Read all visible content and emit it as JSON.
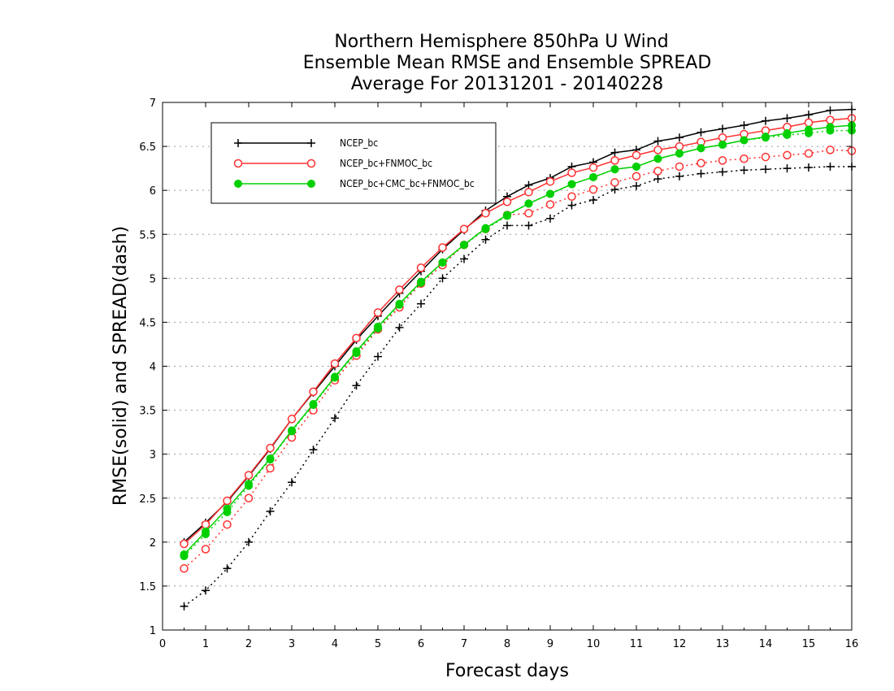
{
  "chart_data": {
    "type": "line",
    "title_lines": [
      "Northern Hemisphere 850hPa U Wind",
      "Ensemble Mean RMSE and Ensemble SPREAD",
      "Average For 20131201 - 20140228"
    ],
    "xlabel": "Forecast days",
    "ylabel": "RMSE(solid) and SPREAD(dash)",
    "xlim": [
      0,
      16
    ],
    "ylim": [
      1,
      7
    ],
    "x_ticks": [
      "0",
      "1",
      "2",
      "3",
      "4",
      "5",
      "6",
      "7",
      "8",
      "9",
      "10",
      "11",
      "12",
      "13",
      "14",
      "15",
      "16"
    ],
    "y_ticks": [
      "1",
      "1.5",
      "2",
      "2.5",
      "3",
      "3.5",
      "4",
      "4.5",
      "5",
      "5.5",
      "6",
      "6.5",
      "7"
    ],
    "grid": "horizontal dotted",
    "legend_placement": "top-left",
    "x": [
      0.5,
      1,
      1.5,
      2,
      2.5,
      3,
      3.5,
      4,
      4.5,
      5,
      5.5,
      6,
      6.5,
      7,
      7.5,
      8,
      8.5,
      9,
      9.5,
      10,
      10.5,
      11,
      11.5,
      12,
      12.5,
      13,
      13.5,
      14,
      14.5,
      15,
      15.5,
      16
    ],
    "series": [
      {
        "name": "NCEP_bc",
        "color": "#000000",
        "marker": "plus",
        "rmse": [
          2.0,
          2.22,
          2.46,
          2.75,
          3.06,
          3.4,
          3.7,
          4.0,
          4.3,
          4.57,
          4.83,
          5.08,
          5.33,
          5.55,
          5.77,
          5.93,
          6.06,
          6.14,
          6.27,
          6.32,
          6.43,
          6.46,
          6.56,
          6.6,
          6.66,
          6.7,
          6.74,
          6.79,
          6.82,
          6.86,
          6.91,
          6.92
        ],
        "spread": [
          1.27,
          1.45,
          1.7,
          2.0,
          2.35,
          2.68,
          3.05,
          3.41,
          3.78,
          4.11,
          4.44,
          4.71,
          5.0,
          5.22,
          5.44,
          5.6,
          5.6,
          5.68,
          5.83,
          5.89,
          6.01,
          6.05,
          6.13,
          6.16,
          6.19,
          6.21,
          6.23,
          6.24,
          6.25,
          6.26,
          6.27,
          6.27
        ]
      },
      {
        "name": "NCEP_bc+FNMOC_bc",
        "color": "#ff3030",
        "marker": "open-circle",
        "rmse": [
          1.98,
          2.2,
          2.47,
          2.76,
          3.07,
          3.4,
          3.71,
          4.03,
          4.32,
          4.61,
          4.87,
          5.12,
          5.35,
          5.56,
          5.74,
          5.87,
          5.98,
          6.1,
          6.2,
          6.26,
          6.34,
          6.4,
          6.46,
          6.5,
          6.55,
          6.6,
          6.64,
          6.68,
          6.72,
          6.77,
          6.8,
          6.82
        ],
        "spread": [
          1.7,
          1.92,
          2.2,
          2.5,
          2.84,
          3.19,
          3.5,
          3.84,
          4.12,
          4.42,
          4.67,
          4.94,
          5.15,
          5.38,
          5.56,
          5.72,
          5.74,
          5.84,
          5.93,
          6.01,
          6.09,
          6.16,
          6.22,
          6.27,
          6.31,
          6.34,
          6.36,
          6.38,
          6.4,
          6.42,
          6.46,
          6.45
        ]
      },
      {
        "name": "NCEP_bc+CMC_bc+FNMOC_bc",
        "color": "#00d000",
        "marker": "filled-circle",
        "rmse": [
          1.86,
          2.12,
          2.38,
          2.66,
          2.95,
          3.27,
          3.57,
          3.88,
          4.17,
          4.45,
          4.71,
          4.96,
          5.18,
          5.38,
          5.57,
          5.72,
          5.85,
          5.96,
          6.07,
          6.15,
          6.24,
          6.27,
          6.36,
          6.42,
          6.48,
          6.52,
          6.57,
          6.61,
          6.65,
          6.69,
          6.72,
          6.74
        ],
        "spread": [
          1.84,
          2.09,
          2.34,
          2.64,
          2.94,
          3.26,
          3.56,
          3.87,
          4.15,
          4.43,
          4.7,
          4.95,
          5.18,
          5.38,
          5.56,
          5.71,
          5.85,
          5.96,
          6.07,
          6.15,
          6.24,
          6.27,
          6.36,
          6.42,
          6.48,
          6.52,
          6.57,
          6.6,
          6.63,
          6.65,
          6.68,
          6.68
        ]
      }
    ]
  }
}
